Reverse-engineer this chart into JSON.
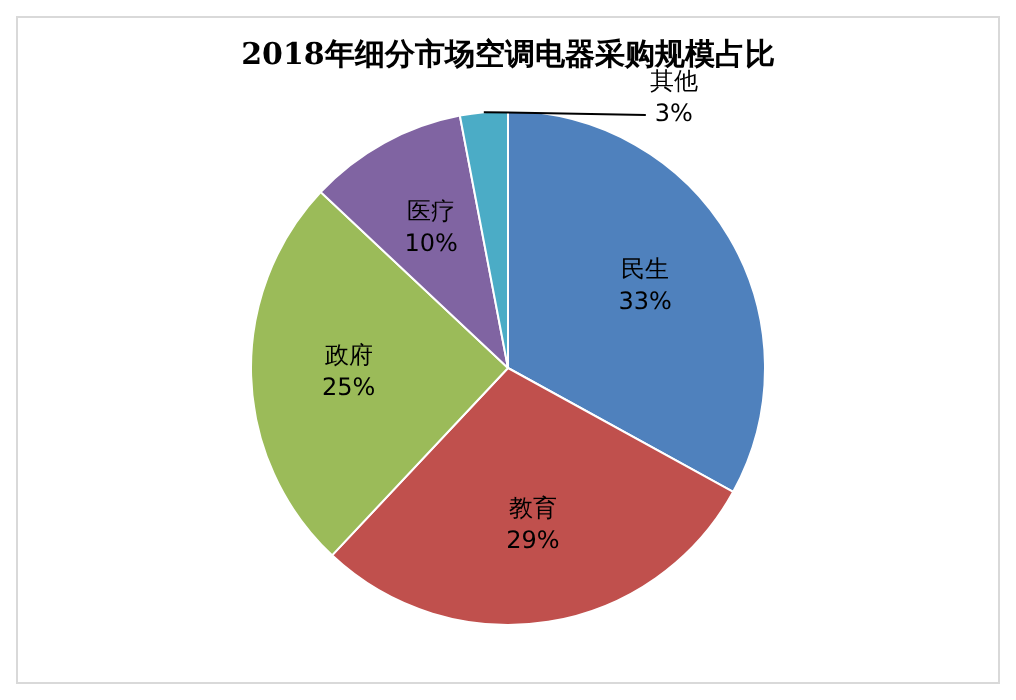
{
  "chart_data": {
    "type": "pie",
    "title": "2018年细分市场空调电器采购规模占比",
    "categories": [
      "民生",
      "教育",
      "政府",
      "医疗",
      "其他"
    ],
    "values": [
      33,
      29,
      25,
      10,
      3
    ],
    "colors": [
      "#4f81bd",
      "#c0504d",
      "#9bbb59",
      "#8064a2",
      "#4bacc6"
    ],
    "value_labels": [
      "33%",
      "29%",
      "25%",
      "10%",
      "3%"
    ],
    "legend": false
  }
}
